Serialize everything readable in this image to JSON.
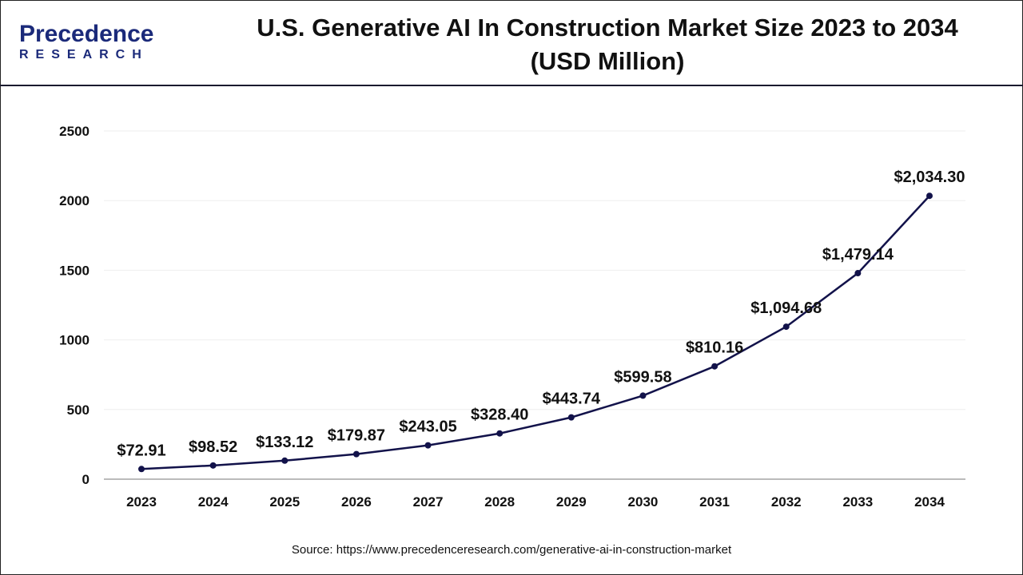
{
  "logo": {
    "line1": "Precedence",
    "line2": "RESEARCH"
  },
  "header": {
    "title_line1": "U.S. Generative AI In Construction Market Size 2023 to 2034",
    "title_line2": "(USD Million)"
  },
  "source": "Source: https://www.precedenceresearch.com/generative-ai-in-construction-market",
  "chart_data": {
    "type": "line",
    "title": "U.S. Generative AI In Construction Market Size 2023 to 2034 (USD Million)",
    "categories": [
      "2023",
      "2024",
      "2025",
      "2026",
      "2027",
      "2028",
      "2029",
      "2030",
      "2031",
      "2032",
      "2033",
      "2034"
    ],
    "values": [
      72.91,
      98.52,
      133.12,
      179.87,
      243.05,
      328.4,
      443.74,
      599.58,
      810.16,
      1094.68,
      1479.14,
      2034.3
    ],
    "data_labels": [
      "$72.91",
      "$98.52",
      "$133.12",
      "$179.87",
      "$243.05",
      "$328.40",
      "$443.74",
      "$599.58",
      "$810.16",
      "$1,094.68",
      "$1,479.14",
      "$2,034.30"
    ],
    "yticks": [
      "0",
      "500",
      "1000",
      "1500",
      "2000",
      "2500"
    ],
    "ylim": [
      0,
      2500
    ],
    "grid": true,
    "line_color": "#12124a"
  }
}
